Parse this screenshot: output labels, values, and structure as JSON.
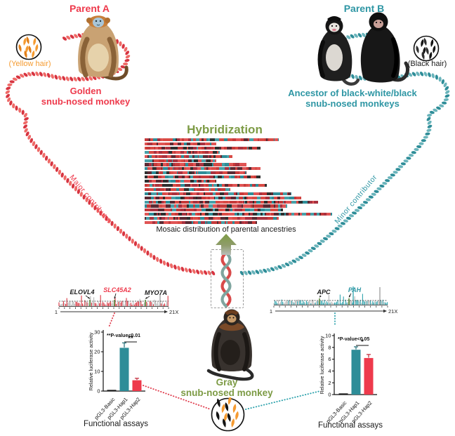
{
  "colors": {
    "red": "#ee3a4c",
    "rope_red": "#d73440",
    "teal": "#2e96a4",
    "rope_teal": "#2e8d98",
    "olive": "#7d9b45",
    "orange": "#f59b31",
    "gray": "#b4b4b4",
    "dark": "#1a1a1a"
  },
  "parent_a": {
    "label": "Parent A",
    "species_line1": "Golden",
    "species_line2": "snub-nosed monkey",
    "hair_label": "(Yellow hair)",
    "hair_icon": "yellow-hair-icon",
    "hair_colors": [
      "#f59b31",
      "#e07f1a"
    ],
    "contributor": "Major contributor"
  },
  "parent_b": {
    "label": "Parent B",
    "species_line1": "Ancestor of black-white/black",
    "species_line2": "snub-nosed monkeys",
    "hair_label": "(Black hair)",
    "hair_icon": "black-hair-icon",
    "hair_colors": [
      "#141414",
      "#2f2f2f"
    ],
    "contributor": "Minor contributor"
  },
  "offspring": {
    "name_line1": "Gray",
    "name_line2": "snub-nosed monkey",
    "hair_icon": "mixed-hair-icon",
    "hair_colors": [
      "#f59b31",
      "#141414"
    ]
  },
  "hybridization": {
    "title": "Hybridization",
    "caption": "Mosaic distribution of parental ancestries",
    "arrow_icon": "up-arrow-icon"
  },
  "assays_label": "Functional assays",
  "chart_data": [
    {
      "id": "ancestry_mosaic",
      "type": "heatmap",
      "description": "Horizontal chromosome-style bars showing mosaic of red (Parent A, major contributor) and teal (Parent B, minor contributor) ancestry blocks",
      "rows": 21,
      "relative_widths": [
        0.66,
        0.35,
        0.57,
        0.37,
        0.43,
        0.35,
        0.5,
        0.57,
        0.5,
        0.57,
        0.35,
        0.6,
        0.42,
        0.72,
        0.77,
        0.85,
        0.7,
        0.68,
        0.92,
        0.66,
        0.55
      ],
      "palette": {
        "major": "#c63a3a",
        "minor": "#2e8d98"
      }
    },
    {
      "id": "scan_left",
      "type": "area",
      "description": "Genome-wide scan, red peaks = Parent A ancestry, chromosomes 1 to 21 and X",
      "x_start_label": "1",
      "x_end_label": "21X",
      "series_color": "#d8333f",
      "highlight_genes": [
        {
          "name": "ELOVL4",
          "label_color": "#1a1a1a"
        },
        {
          "name": "SLC45A2",
          "label_color": "#ee3a4c"
        },
        {
          "name": "MYO7A",
          "label_color": "#1a1a1a"
        }
      ]
    },
    {
      "id": "scan_right",
      "type": "area",
      "description": "Genome-wide scan, teal peaks = Parent B ancestry, chromosomes 1 to 21 and X",
      "x_start_label": "1",
      "x_end_label": "21X",
      "series_color": "#2fa3ad",
      "highlight_genes": [
        {
          "name": "APC",
          "label_color": "#1a1a1a"
        },
        {
          "name": "PAH",
          "label_color": "#2e96a4"
        }
      ]
    },
    {
      "id": "assay_left",
      "type": "bar",
      "ylabel": "Relative luciferase activity",
      "ylim": [
        0,
        30
      ],
      "yticks": [
        0,
        10,
        20,
        30
      ],
      "categories": [
        "pGL3-Basic",
        "pGL3-Hap1",
        "pGL3-Hap2"
      ],
      "values": [
        0.6,
        22,
        5.5
      ],
      "errors": [
        0.2,
        2.5,
        1.0
      ],
      "bar_colors": [
        "#1a1a1a",
        "#2e8d98",
        "#ee3a4c"
      ],
      "error_colors": [
        "#1a1a1a",
        "#1d6b74",
        "#c22536"
      ],
      "annotation": "**P-value<0.01",
      "significance": {
        "between": [
          "pGL3-Hap1",
          "pGL3-Hap2"
        ],
        "label": "**"
      }
    },
    {
      "id": "assay_right",
      "type": "bar",
      "ylabel": "Relative luciferase activity",
      "ylim": [
        0,
        10
      ],
      "yticks": [
        0,
        2,
        4,
        6,
        8,
        10
      ],
      "categories": [
        "pGL3-Basic",
        "pGL3-Hap1",
        "pGL3-Hap2"
      ],
      "values": [
        0.2,
        7.6,
        6.2
      ],
      "errors": [
        0.1,
        0.5,
        0.6
      ],
      "bar_colors": [
        "#1a1a1a",
        "#2e8d98",
        "#ee3a4c"
      ],
      "error_colors": [
        "#1a1a1a",
        "#1d6b74",
        "#c22536"
      ],
      "annotation": "*P-value<0.05",
      "significance": {
        "between": [
          "pGL3-Hap1",
          "pGL3-Hap2"
        ],
        "label": "*"
      }
    }
  ]
}
